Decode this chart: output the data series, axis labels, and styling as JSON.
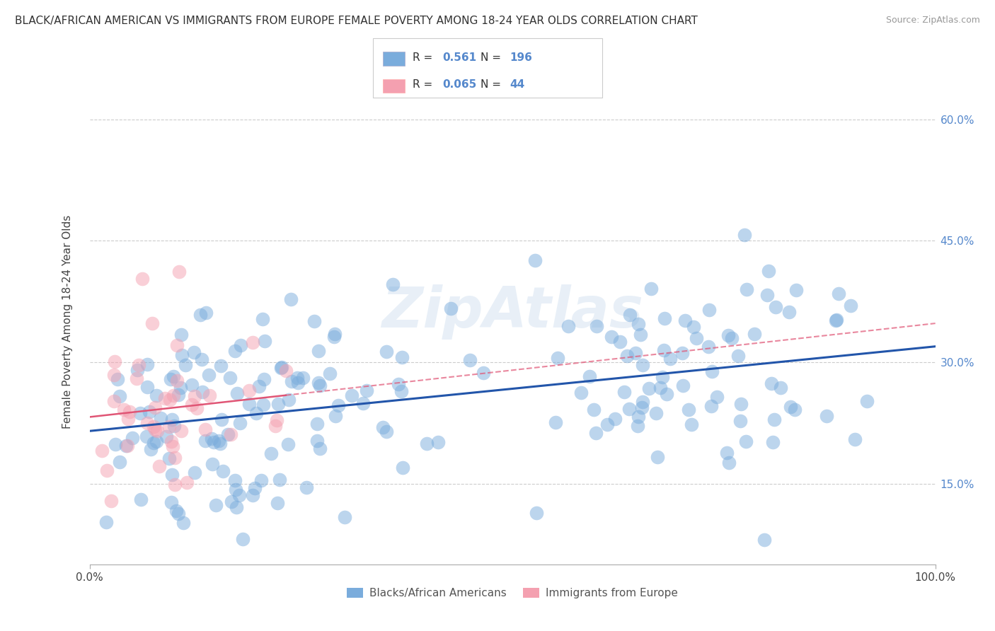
{
  "title": "BLACK/AFRICAN AMERICAN VS IMMIGRANTS FROM EUROPE FEMALE POVERTY AMONG 18-24 YEAR OLDS CORRELATION CHART",
  "source": "Source: ZipAtlas.com",
  "ylabel": "Female Poverty Among 18-24 Year Olds",
  "xlim": [
    0,
    1.0
  ],
  "ylim": [
    0.05,
    0.65
  ],
  "xtick_positions": [
    0.0,
    1.0
  ],
  "xtick_labels": [
    "0.0%",
    "100.0%"
  ],
  "ytick_vals": [
    0.15,
    0.3,
    0.45,
    0.6
  ],
  "ytick_labels": [
    "15.0%",
    "30.0%",
    "45.0%",
    "60.0%"
  ],
  "blue_color": "#7AACDC",
  "pink_color": "#F4A0B0",
  "blue_line_color": "#2255AA",
  "pink_line_color": "#E05575",
  "legend_blue_label": "Blacks/African Americans",
  "legend_pink_label": "Immigrants from Europe",
  "R_blue": "0.561",
  "N_blue": "196",
  "R_pink": "0.065",
  "N_pink": "44",
  "background_color": "#FFFFFF",
  "grid_color": "#CCCCCC",
  "title_fontsize": 11,
  "axis_label_fontsize": 11,
  "tick_fontsize": 11,
  "watermark": "ZipAtlas",
  "right_tick_color": "#5588CC",
  "blue_seed": 42,
  "pink_seed": 17,
  "blue_intercept": 0.215,
  "blue_slope": 0.115,
  "blue_noise": 0.065,
  "pink_intercept": 0.235,
  "pink_slope": 0.025,
  "pink_noise": 0.055
}
